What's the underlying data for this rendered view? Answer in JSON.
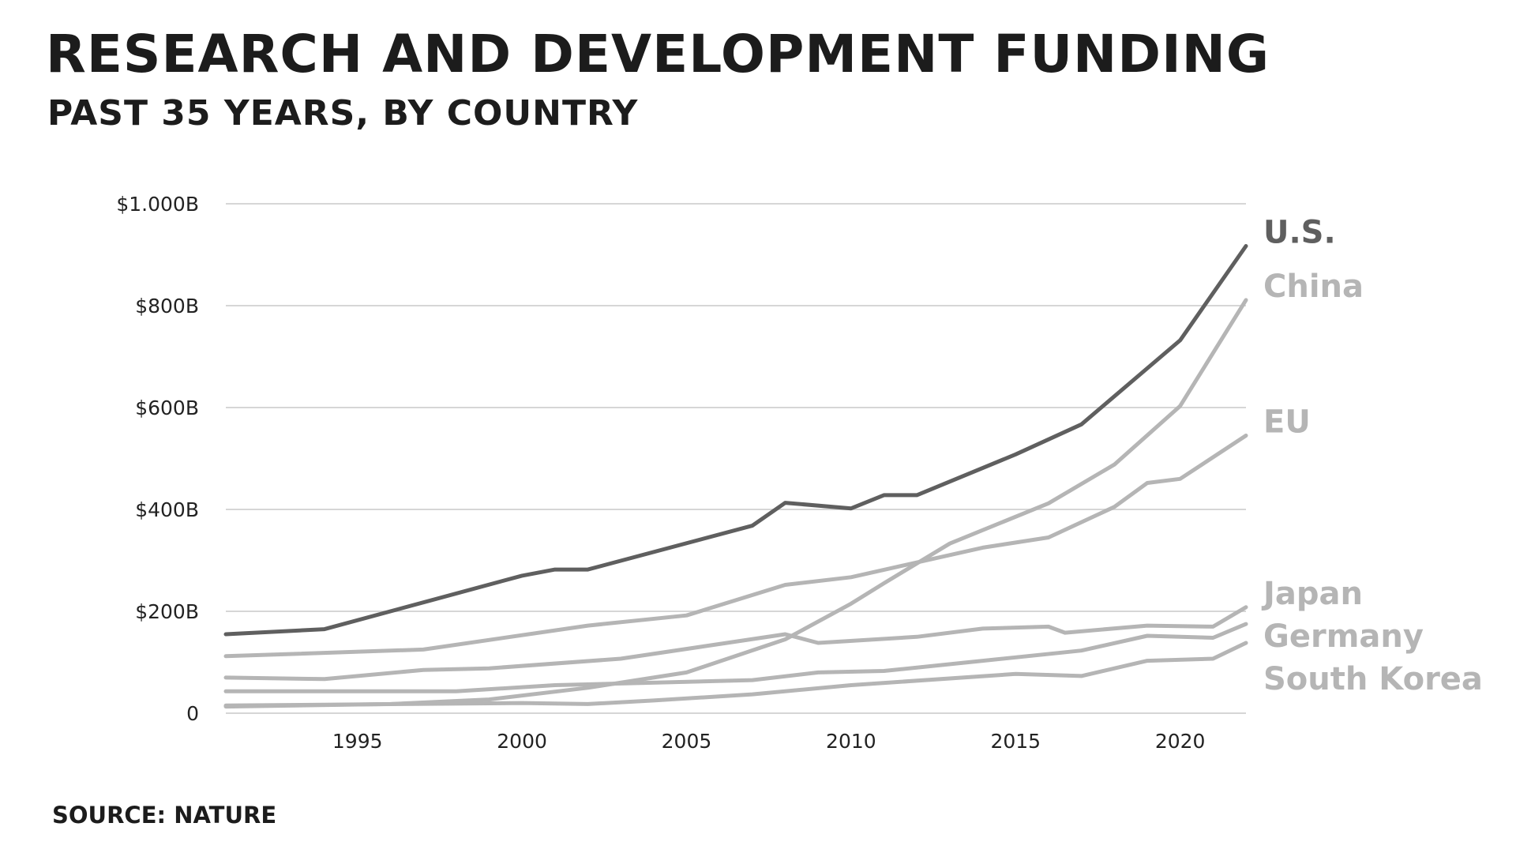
{
  "header": {
    "title": "RESEARCH AND DEVELOPMENT FUNDING",
    "subtitle": "PAST 35 YEARS, BY COUNTRY"
  },
  "footer": {
    "source": "SOURCE: NATURE"
  },
  "colors": {
    "highlight": "#5f5f5f",
    "muted": "#b5b5b5",
    "grid": "#d6d6d6",
    "text": "#1c1c1c"
  },
  "chart_data": {
    "type": "line",
    "title": "RESEARCH AND DEVELOPMENT FUNDING",
    "subtitle": "PAST 35 YEARS, BY COUNTRY",
    "xlabel": "",
    "ylabel": "",
    "xlim": [
      1991,
      2022
    ],
    "ylim": [
      0,
      1000
    ],
    "grid": true,
    "legend": "right, labels at line ends",
    "xticks": [
      {
        "value": 1995,
        "label": "1995"
      },
      {
        "value": 2000,
        "label": "2000"
      },
      {
        "value": 2005,
        "label": "2005"
      },
      {
        "value": 2010,
        "label": "2010"
      },
      {
        "value": 2015,
        "label": "2015"
      },
      {
        "value": 2020,
        "label": "2020"
      }
    ],
    "yticks": [
      {
        "value": 0,
        "label": "0"
      },
      {
        "value": 200,
        "label": "$200B"
      },
      {
        "value": 400,
        "label": "$400B"
      },
      {
        "value": 600,
        "label": "$600B"
      },
      {
        "value": 800,
        "label": "$800B"
      },
      {
        "value": 1000,
        "label": "$1.000B"
      }
    ],
    "series": [
      {
        "name": "U.S.",
        "color": "#5f5f5f",
        "points": [
          [
            1991,
            155
          ],
          [
            1994,
            165
          ],
          [
            2000,
            270
          ],
          [
            2001,
            282
          ],
          [
            2002,
            282
          ],
          [
            2007,
            368
          ],
          [
            2008,
            413
          ],
          [
            2010,
            402
          ],
          [
            2011,
            428
          ],
          [
            2012,
            428
          ],
          [
            2015,
            508
          ],
          [
            2017,
            567
          ],
          [
            2020,
            732
          ],
          [
            2022,
            917
          ]
        ]
      },
      {
        "name": "China",
        "color": "#b5b5b5",
        "points": [
          [
            1991,
            13
          ],
          [
            1996,
            18
          ],
          [
            1999,
            27
          ],
          [
            2002,
            50
          ],
          [
            2005,
            80
          ],
          [
            2008,
            145
          ],
          [
            2010,
            215
          ],
          [
            2011,
            255
          ],
          [
            2013,
            333
          ],
          [
            2016,
            412
          ],
          [
            2018,
            488
          ],
          [
            2020,
            603
          ],
          [
            2022,
            811
          ]
        ]
      },
      {
        "name": "EU",
        "color": "#b5b5b5",
        "points": [
          [
            1991,
            112
          ],
          [
            1997,
            125
          ],
          [
            2002,
            172
          ],
          [
            2005,
            192
          ],
          [
            2008,
            252
          ],
          [
            2010,
            267
          ],
          [
            2014,
            325
          ],
          [
            2016,
            345
          ],
          [
            2018,
            405
          ],
          [
            2019,
            452
          ],
          [
            2020,
            460
          ],
          [
            2022,
            545
          ]
        ]
      },
      {
        "name": "Japan",
        "color": "#b5b5b5",
        "points": [
          [
            1991,
            70
          ],
          [
            1994,
            67
          ],
          [
            1997,
            85
          ],
          [
            1999,
            88
          ],
          [
            2003,
            107
          ],
          [
            2008,
            155
          ],
          [
            2009,
            138
          ],
          [
            2012,
            150
          ],
          [
            2014,
            166
          ],
          [
            2016,
            170
          ],
          [
            2016.5,
            158
          ],
          [
            2019,
            172
          ],
          [
            2021,
            170
          ],
          [
            2022,
            208
          ]
        ]
      },
      {
        "name": "Germany",
        "color": "#b5b5b5",
        "points": [
          [
            1991,
            43
          ],
          [
            1998,
            43
          ],
          [
            2001,
            55
          ],
          [
            2007,
            65
          ],
          [
            2009,
            80
          ],
          [
            2011,
            83
          ],
          [
            2014,
            103
          ],
          [
            2017,
            123
          ],
          [
            2019,
            152
          ],
          [
            2021,
            148
          ],
          [
            2022,
            175
          ]
        ]
      },
      {
        "name": "South Korea",
        "color": "#b5b5b5",
        "points": [
          [
            1991,
            15
          ],
          [
            2000,
            20
          ],
          [
            2002,
            18
          ],
          [
            2004,
            25
          ],
          [
            2007,
            37
          ],
          [
            2010,
            55
          ],
          [
            2015,
            77
          ],
          [
            2017,
            73
          ],
          [
            2019,
            103
          ],
          [
            2021,
            107
          ],
          [
            2022,
            138
          ]
        ]
      }
    ]
  }
}
